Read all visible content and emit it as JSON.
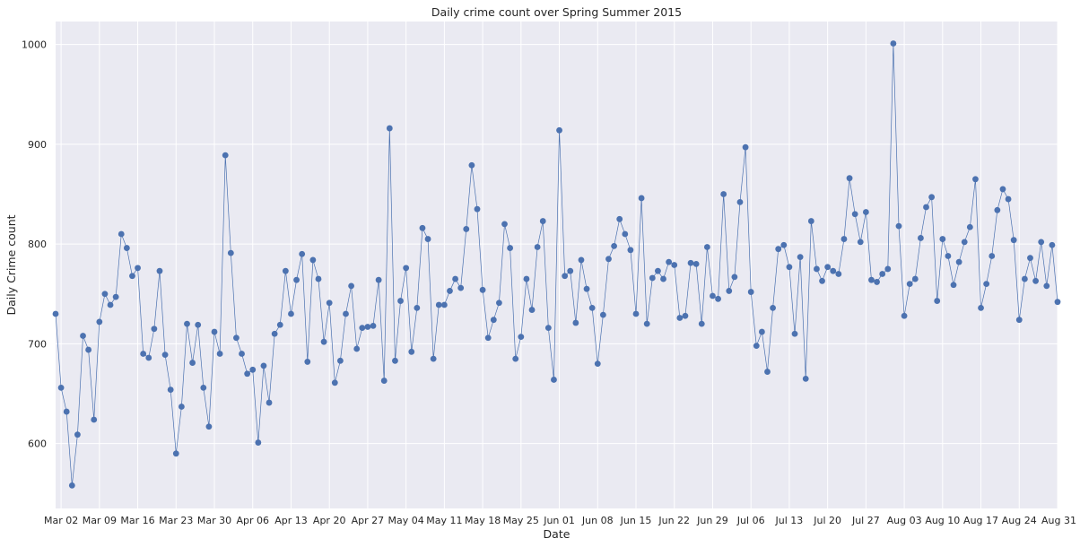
{
  "chart_data": {
    "type": "line",
    "title": "Daily crime count over Spring Summer 2015",
    "xlabel": "Date",
    "ylabel": "Daily Crime count",
    "x_start": "2015-03-01",
    "x_end": "2015-08-31",
    "xlim": [
      "2015-03-01",
      "2015-08-31"
    ],
    "ylim": [
      535,
      1023
    ],
    "y_ticks": [
      600,
      700,
      800,
      900,
      1000
    ],
    "x_ticks": [
      {
        "date": "2015-03-02",
        "label": "Mar 02"
      },
      {
        "date": "2015-03-09",
        "label": "Mar 09"
      },
      {
        "date": "2015-03-16",
        "label": "Mar 16"
      },
      {
        "date": "2015-03-23",
        "label": "Mar 23"
      },
      {
        "date": "2015-03-30",
        "label": "Mar 30"
      },
      {
        "date": "2015-04-06",
        "label": "Apr 06"
      },
      {
        "date": "2015-04-13",
        "label": "Apr 13"
      },
      {
        "date": "2015-04-20",
        "label": "Apr 20"
      },
      {
        "date": "2015-04-27",
        "label": "Apr 27"
      },
      {
        "date": "2015-05-04",
        "label": "May 04"
      },
      {
        "date": "2015-05-11",
        "label": "May 11"
      },
      {
        "date": "2015-05-18",
        "label": "May 18"
      },
      {
        "date": "2015-05-25",
        "label": "May 25"
      },
      {
        "date": "2015-06-01",
        "label": "Jun 01"
      },
      {
        "date": "2015-06-08",
        "label": "Jun 08"
      },
      {
        "date": "2015-06-15",
        "label": "Jun 15"
      },
      {
        "date": "2015-06-22",
        "label": "Jun 22"
      },
      {
        "date": "2015-06-29",
        "label": "Jun 29"
      },
      {
        "date": "2015-07-06",
        "label": "Jul 06"
      },
      {
        "date": "2015-07-13",
        "label": "Jul 13"
      },
      {
        "date": "2015-07-20",
        "label": "Jul 20"
      },
      {
        "date": "2015-07-27",
        "label": "Jul 27"
      },
      {
        "date": "2015-08-03",
        "label": "Aug 03"
      },
      {
        "date": "2015-08-10",
        "label": "Aug 10"
      },
      {
        "date": "2015-08-17",
        "label": "Aug 17"
      },
      {
        "date": "2015-08-24",
        "label": "Aug 24"
      },
      {
        "date": "2015-08-31",
        "label": "Aug 31"
      }
    ],
    "grid": true,
    "line_color": "#4c72b0",
    "background_color": "#eaeaf2",
    "grid_color": "#ffffff",
    "series": [
      {
        "values": [
          730,
          656,
          632,
          558,
          609,
          708,
          694,
          624,
          722,
          750,
          739,
          747,
          810,
          796,
          768,
          776,
          690,
          686,
          715,
          773,
          689,
          654,
          590,
          637,
          720,
          681,
          719,
          656,
          617,
          712,
          690,
          889,
          791,
          706,
          690,
          670,
          674,
          601,
          678,
          641,
          710,
          719,
          773,
          730,
          764,
          790,
          682,
          784,
          765,
          702,
          741,
          661,
          683,
          730,
          758,
          695,
          716,
          717,
          718,
          764,
          663,
          916,
          683,
          743,
          776,
          692,
          736,
          816,
          805,
          685,
          739,
          739,
          753,
          765,
          756,
          815,
          879,
          835,
          754,
          706,
          724,
          741,
          820,
          796,
          685,
          707,
          765,
          734,
          797,
          823,
          716,
          664,
          914,
          768,
          773,
          721,
          784,
          755,
          736,
          680,
          729,
          785,
          798,
          825,
          810,
          794,
          730,
          846,
          720,
          766,
          773,
          765,
          782,
          779,
          726,
          728,
          781,
          780,
          720,
          797,
          748,
          745,
          850,
          753,
          767,
          842,
          897,
          752,
          698,
          712,
          672,
          736,
          795,
          799,
          777,
          710,
          787,
          665,
          823,
          775,
          763,
          777,
          773,
          770,
          805,
          866,
          830,
          802,
          832,
          764,
          762,
          770,
          775,
          1001,
          818,
          728,
          760,
          765,
          806,
          837,
          847,
          743,
          805,
          788,
          759,
          782,
          802,
          817,
          865,
          736,
          760,
          788,
          834,
          855,
          845,
          804,
          724,
          765,
          786,
          763,
          802,
          758,
          799,
          742
        ]
      }
    ]
  }
}
